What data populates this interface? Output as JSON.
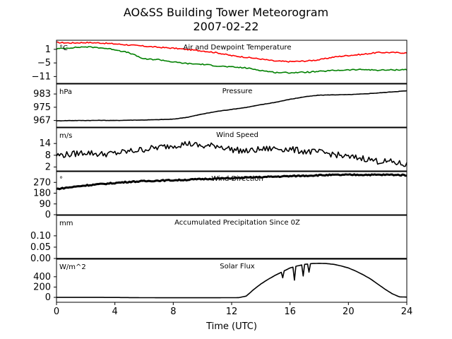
{
  "title_line1": "AO&SS Building Tower Meteorogram",
  "title_line2": "2007-02-22",
  "chart_data": {
    "type": "line",
    "xlabel": "Time (UTC)",
    "xlim": [
      0,
      24
    ],
    "xticks": [
      0,
      4,
      8,
      12,
      16,
      20,
      24
    ],
    "panels": [
      {
        "id": "temperature",
        "title": "Air and Dewpoint Temperature",
        "unit": "°C",
        "ylim": [
          -14,
          5
        ],
        "yticks": [
          1,
          -5,
          -11
        ],
        "ytick_labels": [
          "1",
          "−5",
          "−11"
        ],
        "series": [
          {
            "color": "#ff0000",
            "x": [
              0,
              1,
              2,
              3,
              4,
              5,
              6,
              7,
              8,
              9,
              10,
              11,
              12,
              13,
              14,
              15,
              16,
              17,
              18,
              19,
              20,
              21,
              22,
              23,
              24
            ],
            "values": [
              4,
              3.8,
              4,
              3.8,
              3.4,
              2.9,
              2.4,
              1.9,
              1.5,
              0.9,
              0.3,
              -0.5,
              -1.8,
              -2.5,
              -3.3,
              -4.2,
              -4.4,
              -4.2,
              -3.6,
              -2.4,
              -1.7,
              -1.2,
              -0.4,
              -0.4,
              -0.6
            ]
          },
          {
            "color": "#008000",
            "x": [
              0,
              1,
              2,
              3,
              4,
              5,
              6,
              7,
              8,
              9,
              10,
              11,
              12,
              13,
              14,
              15,
              16,
              17,
              18,
              19,
              20,
              21,
              22,
              23,
              24
            ],
            "values": [
              1.2,
              1.7,
              2.1,
              1.7,
              0.9,
              -0.6,
              -3.3,
              -3.5,
              -4.6,
              -5.3,
              -5.6,
              -6.3,
              -6.8,
              -7.2,
              -8.3,
              -9.2,
              -9.3,
              -9.1,
              -8.8,
              -8.3,
              -8.1,
              -7.9,
              -8.2,
              -8.1,
              -7.9
            ]
          }
        ]
      },
      {
        "id": "pressure",
        "title": "Pressure",
        "unit": "hPa",
        "ylim": [
          963,
          989
        ],
        "yticks": [
          983,
          975,
          967
        ],
        "ytick_labels": [
          "983",
          "975",
          "967"
        ],
        "series": [
          {
            "color": "#000000",
            "x": [
              0,
              1,
              2,
              3,
              4,
              5,
              6,
              7,
              8,
              9,
              10,
              11,
              12,
              13,
              14,
              15,
              16,
              17,
              18,
              19,
              20,
              21,
              22,
              23,
              24
            ],
            "values": [
              966.8,
              967,
              967,
              967.1,
              967,
              967.2,
              967.3,
              967.5,
              967.8,
              969,
              970.9,
              972.5,
              973.7,
              974.9,
              976.5,
              978,
              979.8,
              981.3,
              982.3,
              982.5,
              982.6,
              983,
              983.6,
              984.3,
              984.9
            ]
          }
        ]
      },
      {
        "id": "wind_speed",
        "title": "Wind Speed",
        "unit": "m/s",
        "ylim": [
          0,
          22
        ],
        "yticks": [
          14,
          8,
          2
        ],
        "ytick_labels": [
          "14",
          "8",
          "2"
        ],
        "series": [
          {
            "color": "#000000",
            "x": [
              0,
              1,
              2,
              3,
              4,
              5,
              6,
              7,
              8,
              9,
              10,
              11,
              12,
              13,
              14,
              15,
              16,
              17,
              18,
              19,
              20,
              21,
              22,
              23,
              24
            ],
            "values": [
              8,
              8.5,
              9.5,
              8.5,
              9,
              10,
              11,
              12,
              13,
              14,
              12.5,
              13,
              11,
              10,
              11,
              11.5,
              11,
              10,
              9.5,
              8.5,
              7,
              6.5,
              5,
              4.5,
              3
            ]
          }
        ]
      },
      {
        "id": "wind_direction",
        "title": "Wind Direction",
        "unit": "°",
        "ylim": [
          0,
          360
        ],
        "yticks": [
          270,
          180,
          90,
          0
        ],
        "ytick_labels": [
          "270",
          "180",
          "90",
          "0"
        ],
        "series": [
          {
            "color": "#000000",
            "x": [
              0,
              1,
              2,
              3,
              4,
              5,
              6,
              7,
              8,
              9,
              10,
              11,
              12,
              13,
              14,
              15,
              16,
              17,
              18,
              19,
              20,
              21,
              22,
              23,
              24
            ],
            "values": [
              215,
              230,
              245,
              255,
              265,
              275,
              280,
              285,
              288,
              292,
              298,
              302,
              305,
              310,
              314,
              318,
              322,
              326,
              330,
              332,
              333,
              334,
              333,
              334,
              330
            ]
          }
        ]
      },
      {
        "id": "precipitation",
        "title": "Accumulated Precipitation Since 0Z",
        "unit": "mm",
        "ylim": [
          0,
          0.19
        ],
        "yticks": [
          0.1,
          0.05,
          0.0
        ],
        "ytick_labels": [
          "0.10",
          "0.05",
          "0.00"
        ],
        "series": [
          {
            "color": "#000000",
            "x": [
              0,
              24
            ],
            "values": [
              0,
              0
            ]
          }
        ]
      },
      {
        "id": "solar",
        "title": "Solar Flux",
        "unit": "W/m^2",
        "ylim": [
          -95,
          740
        ],
        "yticks": [
          400,
          200,
          0
        ],
        "ytick_labels": [
          "400",
          "200",
          "0"
        ],
        "series": [
          {
            "color": "#000000",
            "x": [
              0,
              2,
              4,
              6,
              8,
              10,
              12,
              12.5,
              13,
              13.5,
              14,
              14.5,
              15,
              15.5,
              16,
              16.5,
              17,
              17.5,
              18,
              18.5,
              19,
              19.5,
              20,
              20.5,
              21,
              21.5,
              22,
              22.5,
              23,
              23.5,
              24
            ],
            "values": [
              0,
              0,
              -2,
              -6,
              -8,
              -8,
              -6,
              -5,
              25,
              150,
              260,
              350,
              430,
              500,
              570,
              610,
              640,
              655,
              660,
              655,
              640,
              610,
              570,
              510,
              440,
              360,
              260,
              160,
              70,
              10,
              5
            ]
          }
        ]
      }
    ]
  }
}
